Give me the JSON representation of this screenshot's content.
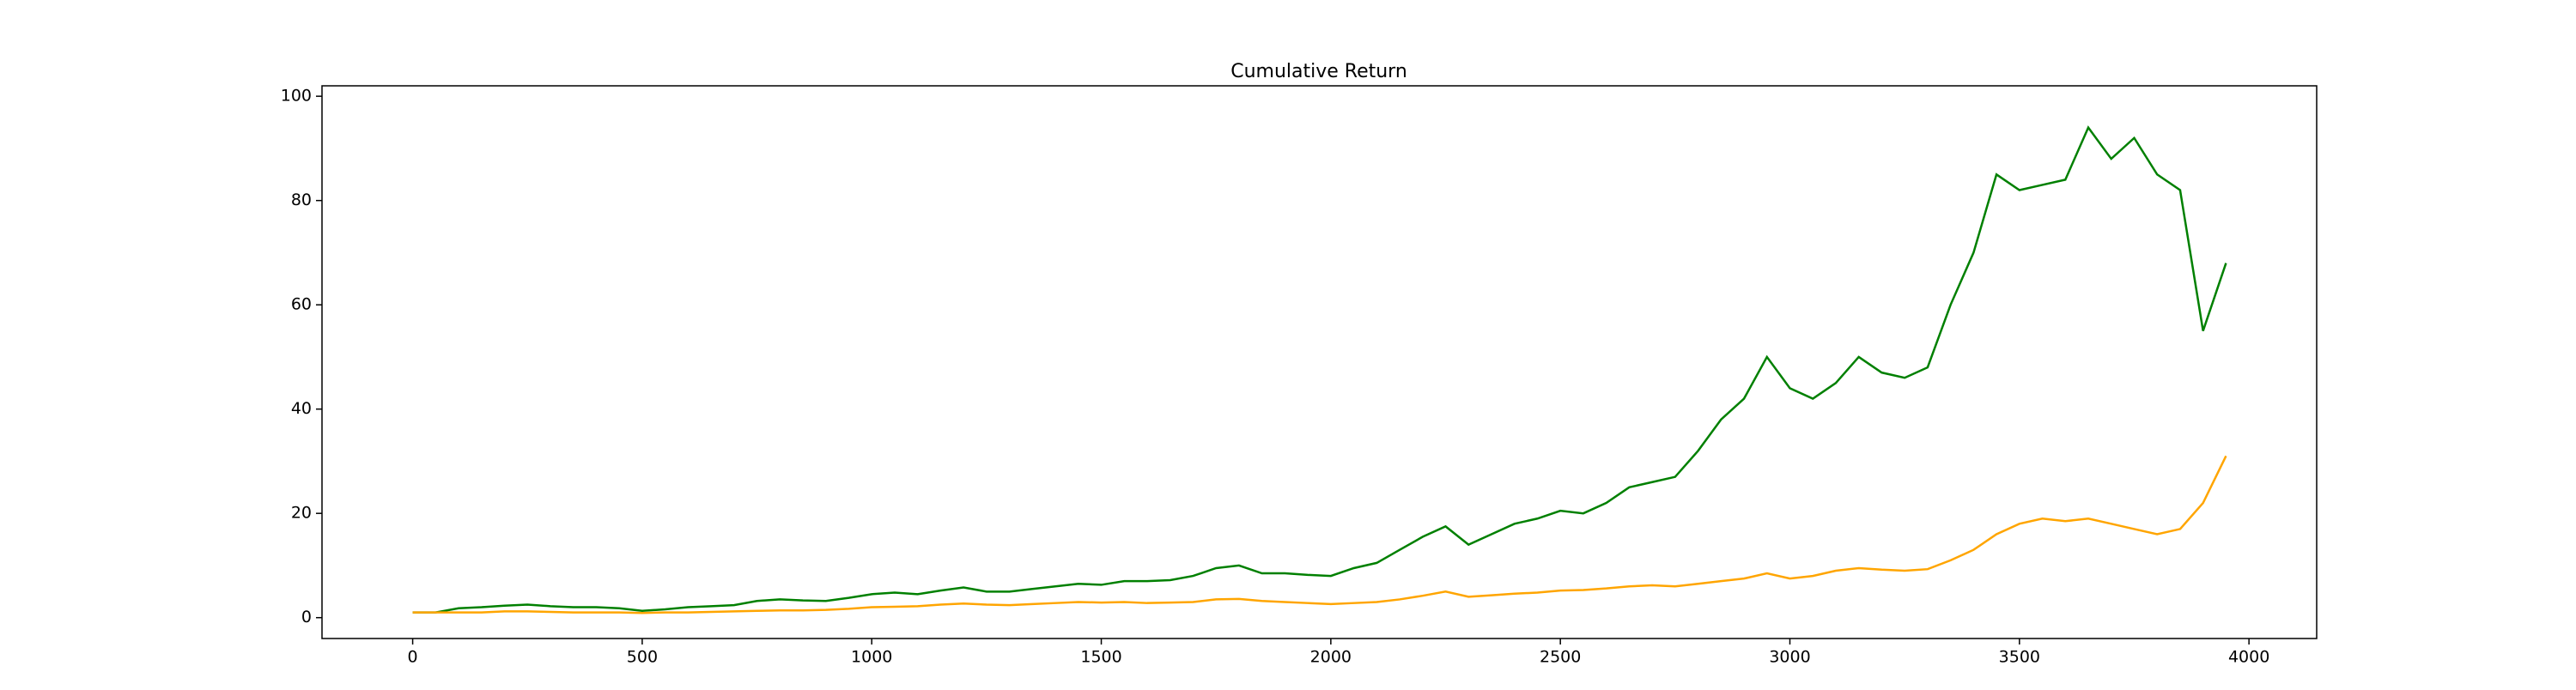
{
  "chart_data": {
    "type": "line",
    "title": "Cumulative Return",
    "x": [
      0,
      50,
      100,
      150,
      200,
      250,
      300,
      350,
      400,
      450,
      500,
      550,
      600,
      650,
      700,
      750,
      800,
      850,
      900,
      950,
      1000,
      1050,
      1100,
      1150,
      1200,
      1250,
      1300,
      1350,
      1400,
      1450,
      1500,
      1550,
      1600,
      1650,
      1700,
      1750,
      1800,
      1850,
      1900,
      1950,
      2000,
      2050,
      2100,
      2150,
      2200,
      2250,
      2300,
      2350,
      2400,
      2450,
      2500,
      2550,
      2600,
      2650,
      2700,
      2750,
      2800,
      2850,
      2900,
      2950,
      3000,
      3050,
      3100,
      3150,
      3200,
      3250,
      3300,
      3350,
      3400,
      3450,
      3500,
      3550,
      3600,
      3650,
      3700,
      3750,
      3800,
      3850,
      3900,
      3950
    ],
    "series": [
      {
        "color": "green",
        "values": [
          1,
          1,
          1.8,
          2,
          2.3,
          2.5,
          2.2,
          2,
          2,
          1.8,
          1.3,
          1.6,
          2,
          2.2,
          2.4,
          3.2,
          3.5,
          3.3,
          3.2,
          3.8,
          4.5,
          4.8,
          4.5,
          5.2,
          5.8,
          5,
          5,
          5.5,
          6,
          6.5,
          6.3,
          7,
          7,
          7.2,
          8,
          9.5,
          10,
          8.5,
          8.5,
          8.2,
          8,
          9.5,
          10.5,
          13,
          15.5,
          17.5,
          14,
          16,
          18,
          19,
          20.5,
          20,
          22,
          25,
          26,
          27,
          32,
          38,
          42,
          50,
          44,
          42,
          45,
          50,
          47,
          46,
          48,
          60,
          70,
          85,
          82,
          83,
          84,
          94,
          88,
          92,
          85,
          82,
          55,
          68
        ]
      },
      {
        "color": "orange",
        "values": [
          1,
          1,
          1,
          1,
          1.2,
          1.2,
          1.1,
          1,
          1,
          1,
          0.9,
          1,
          1,
          1.1,
          1.2,
          1.3,
          1.4,
          1.4,
          1.5,
          1.7,
          2,
          2.1,
          2.2,
          2.5,
          2.7,
          2.5,
          2.4,
          2.6,
          2.8,
          3,
          2.9,
          3,
          2.8,
          2.9,
          3,
          3.5,
          3.6,
          3.2,
          3,
          2.8,
          2.6,
          2.8,
          3,
          3.5,
          4.2,
          5,
          4,
          4.3,
          4.6,
          4.8,
          5.2,
          5.3,
          5.6,
          6,
          6.2,
          6,
          6.5,
          7,
          7.5,
          8.5,
          7.5,
          8,
          9,
          9.5,
          9.2,
          9,
          9.3,
          11,
          13,
          16,
          18,
          19,
          18.5,
          19,
          18,
          17,
          16,
          17,
          22,
          31
        ]
      }
    ],
    "xlim": [
      -197.5,
      4147.5
    ],
    "xticks": [
      0,
      500,
      1000,
      1500,
      2000,
      2500,
      3000,
      3500,
      4000
    ],
    "ylim": [
      -4,
      102
    ],
    "yticks": [
      0,
      20,
      40,
      60,
      80,
      100
    ]
  }
}
